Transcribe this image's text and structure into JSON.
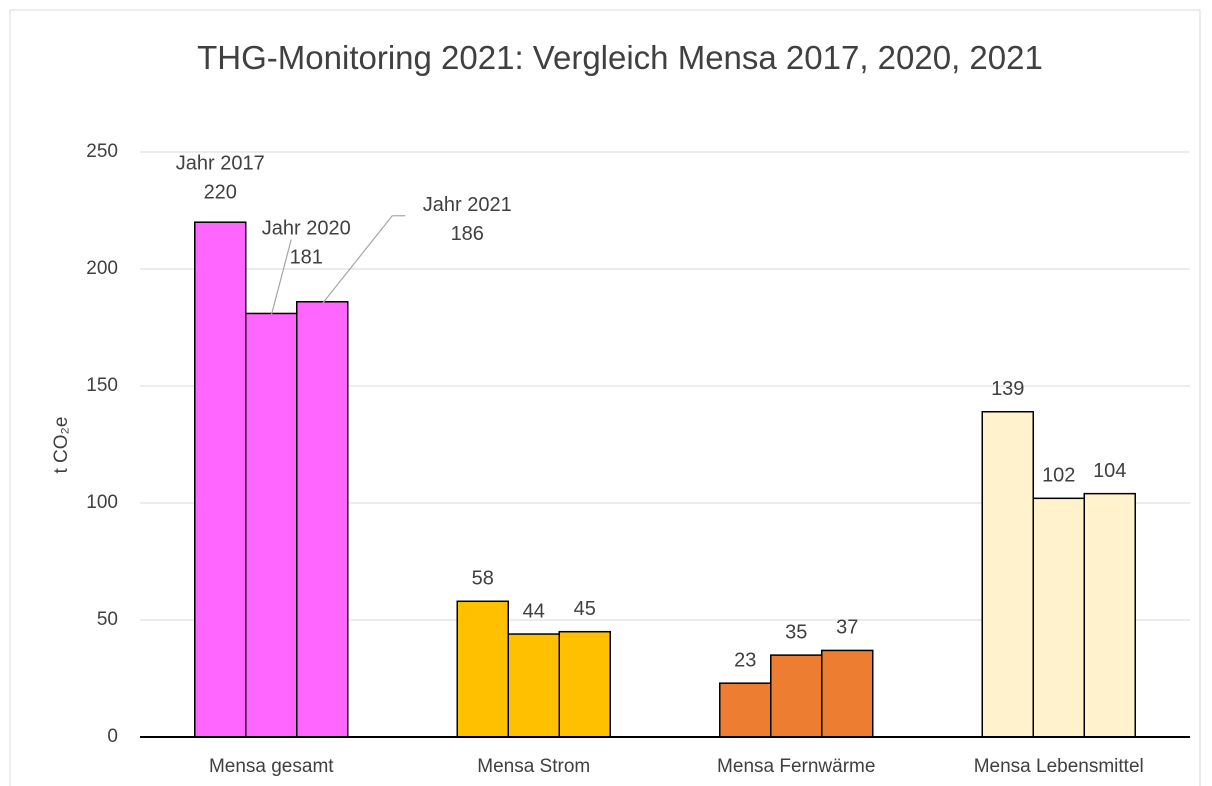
{
  "chart_data": {
    "type": "bar",
    "title": "THG-Monitoring 2021: Vergleich Mensa 2017, 2020, 2021",
    "y_label": "t CO₂e",
    "categories": [
      "Mensa gesamt",
      "Mensa Strom",
      "Mensa Fernwärme",
      "Mensa Lebensmittel"
    ],
    "category_colors": [
      "#ff66ff",
      "#ffc000",
      "#ed7d31",
      "#fff2cc"
    ],
    "series": [
      {
        "name": "Jahr 2017",
        "values": [
          220,
          58,
          23,
          139
        ]
      },
      {
        "name": "Jahr 2020",
        "values": [
          181,
          44,
          35,
          102
        ]
      },
      {
        "name": "Jahr 2021",
        "values": [
          186,
          45,
          37,
          104
        ]
      }
    ],
    "ylim": [
      0,
      250
    ],
    "yticks": [
      0,
      50,
      100,
      150,
      200,
      250
    ],
    "grid": true
  }
}
